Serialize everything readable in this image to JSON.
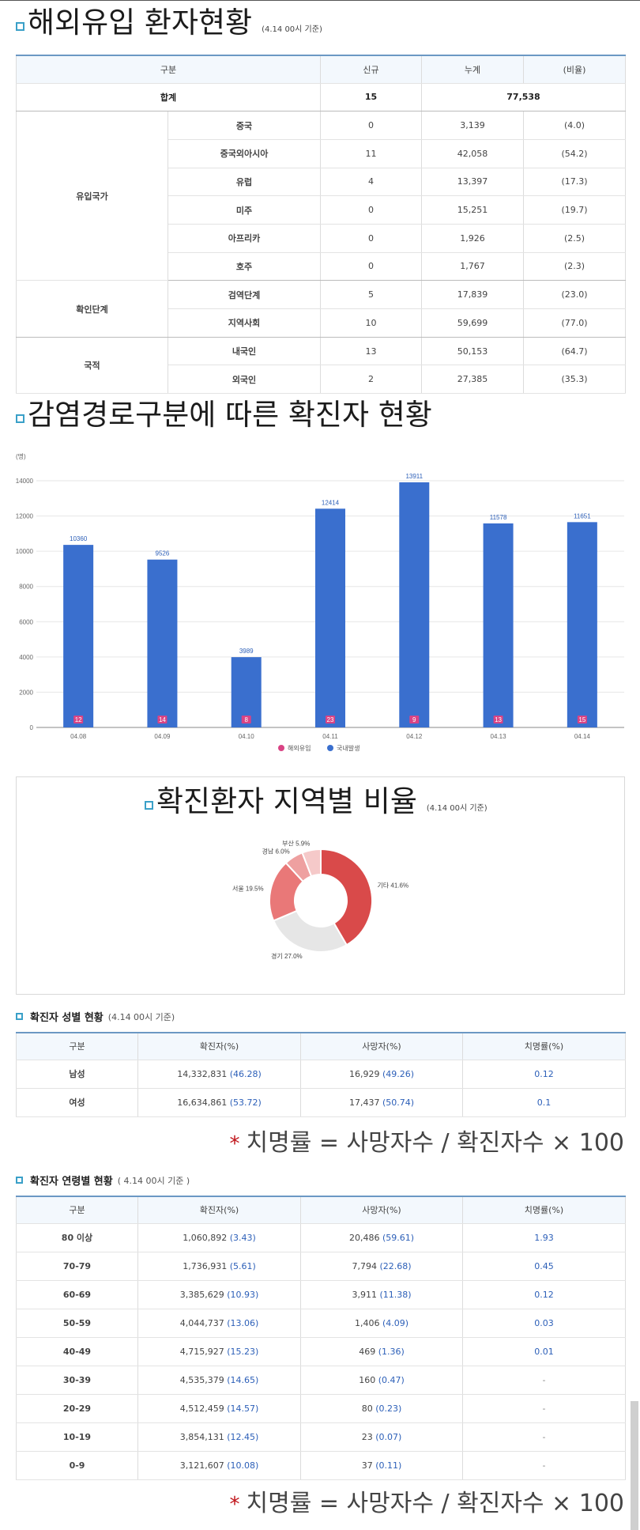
{
  "section1": {
    "title": "해외유입 환자현황",
    "note": "(4.14 00시 기준)",
    "headers": [
      "구분",
      "신규",
      "누계",
      "(비율)"
    ],
    "total": {
      "label": "합계",
      "new": "15",
      "cumulative": "77,538"
    },
    "groups": [
      {
        "label": "유입국가",
        "rows": [
          {
            "name": "중국",
            "new": "0",
            "cum": "3,139",
            "ratio": "(4.0)"
          },
          {
            "name": "중국외아시아",
            "new": "11",
            "cum": "42,058",
            "ratio": "(54.2)"
          },
          {
            "name": "유럽",
            "new": "4",
            "cum": "13,397",
            "ratio": "(17.3)"
          },
          {
            "name": "미주",
            "new": "0",
            "cum": "15,251",
            "ratio": "(19.7)"
          },
          {
            "name": "아프리카",
            "new": "0",
            "cum": "1,926",
            "ratio": "(2.5)"
          },
          {
            "name": "호주",
            "new": "0",
            "cum": "1,767",
            "ratio": "(2.3)"
          }
        ]
      },
      {
        "label": "확인단계",
        "rows": [
          {
            "name": "검역단계",
            "new": "5",
            "cum": "17,839",
            "ratio": "(23.0)"
          },
          {
            "name": "지역사회",
            "new": "10",
            "cum": "59,699",
            "ratio": "(77.0)"
          }
        ]
      },
      {
        "label": "국적",
        "rows": [
          {
            "name": "내국인",
            "new": "13",
            "cum": "50,153",
            "ratio": "(64.7)"
          },
          {
            "name": "외국인",
            "new": "2",
            "cum": "27,385",
            "ratio": "(35.3)"
          }
        ]
      }
    ]
  },
  "section2": {
    "title": "감염경로구분에 따른 확진자 현황"
  },
  "chart_data": {
    "type": "bar",
    "unit_label": "(명)",
    "categories": [
      "04.08",
      "04.09",
      "04.10",
      "04.11",
      "04.12",
      "04.13",
      "04.14"
    ],
    "series": [
      {
        "name": "해외유입",
        "values": [
          12,
          14,
          8,
          23,
          9,
          13,
          15
        ],
        "color": "#d94384"
      },
      {
        "name": "국내발생",
        "values": [
          10360,
          9526,
          3989,
          12414,
          13911,
          11578,
          11651
        ],
        "color": "#3a6fce"
      }
    ],
    "yticks": [
      0,
      2000,
      4000,
      6000,
      8000,
      10000,
      12000,
      14000
    ],
    "ylim": [
      0,
      14000
    ],
    "grid": true,
    "legend": "bottom"
  },
  "section3": {
    "title": "확진환자 지역별 비율",
    "note": "(4.14 00시 기준)",
    "donut": [
      {
        "label": "기타",
        "pct": 41.6,
        "text": "기타 41.6%",
        "color": "#d94a4a"
      },
      {
        "label": "경기",
        "pct": 27.0,
        "text": "경기 27.0%",
        "color": "#e6e6e6"
      },
      {
        "label": "서울",
        "pct": 19.5,
        "text": "서울 19.5%",
        "color": "#e97878"
      },
      {
        "label": "경남",
        "pct": 6.0,
        "text": "경남 6.0%",
        "color": "#eea0a0"
      },
      {
        "label": "부산",
        "pct": 5.9,
        "text": "부산 5.9%",
        "color": "#f5c9c9"
      }
    ]
  },
  "section4": {
    "title": "확진자 성별 현황",
    "note": "(4.14 00시 기준)",
    "headers": [
      "구분",
      "확진자(%)",
      "사망자(%)",
      "치명률(%)"
    ],
    "rows": [
      {
        "label": "남성",
        "cases": "14,332,831",
        "cases_pct": "(46.28)",
        "deaths": "16,929",
        "deaths_pct": "(49.26)",
        "rate": "0.12"
      },
      {
        "label": "여성",
        "cases": "16,634,861",
        "cases_pct": "(53.72)",
        "deaths": "17,437",
        "deaths_pct": "(50.74)",
        "rate": "0.1"
      }
    ],
    "formula_star": "*",
    "formula": "치명률 = 사망자수 / 확진자수 × 100"
  },
  "section5": {
    "title": "확진자 연령별 현황",
    "note": "( 4.14 00시 기준 )",
    "headers": [
      "구분",
      "확진자(%)",
      "사망자(%)",
      "치명률(%)"
    ],
    "rows": [
      {
        "label": "80 이상",
        "cases": "1,060,892",
        "cases_pct": "(3.43)",
        "deaths": "20,486",
        "deaths_pct": "(59.61)",
        "rate": "1.93"
      },
      {
        "label": "70-79",
        "cases": "1,736,931",
        "cases_pct": "(5.61)",
        "deaths": "7,794",
        "deaths_pct": "(22.68)",
        "rate": "0.45"
      },
      {
        "label": "60-69",
        "cases": "3,385,629",
        "cases_pct": "(10.93)",
        "deaths": "3,911",
        "deaths_pct": "(11.38)",
        "rate": "0.12"
      },
      {
        "label": "50-59",
        "cases": "4,044,737",
        "cases_pct": "(13.06)",
        "deaths": "1,406",
        "deaths_pct": "(4.09)",
        "rate": "0.03"
      },
      {
        "label": "40-49",
        "cases": "4,715,927",
        "cases_pct": "(15.23)",
        "deaths": "469",
        "deaths_pct": "(1.36)",
        "rate": "0.01"
      },
      {
        "label": "30-39",
        "cases": "4,535,379",
        "cases_pct": "(14.65)",
        "deaths": "160",
        "deaths_pct": "(0.47)",
        "rate": "-"
      },
      {
        "label": "20-29",
        "cases": "4,512,459",
        "cases_pct": "(14.57)",
        "deaths": "80",
        "deaths_pct": "(0.23)",
        "rate": "-"
      },
      {
        "label": "10-19",
        "cases": "3,854,131",
        "cases_pct": "(12.45)",
        "deaths": "23",
        "deaths_pct": "(0.07)",
        "rate": "-"
      },
      {
        "label": "0-9",
        "cases": "3,121,607",
        "cases_pct": "(10.08)",
        "deaths": "37",
        "deaths_pct": "(0.11)",
        "rate": "-"
      }
    ],
    "formula_star": "*",
    "formula": "치명률 = 사망자수 / 확진자수 × 100"
  }
}
